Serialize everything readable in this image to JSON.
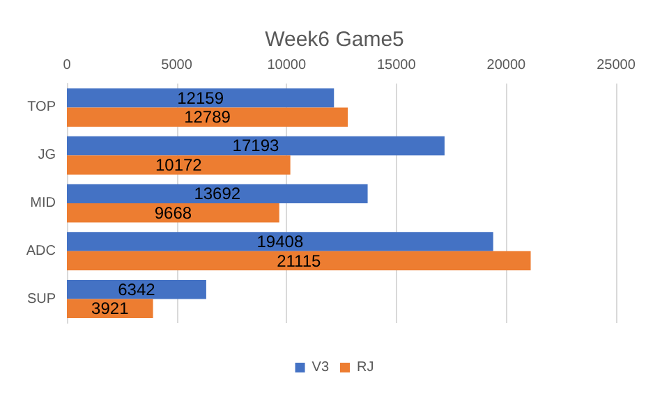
{
  "chart_data": {
    "type": "bar",
    "orientation": "horizontal",
    "title": "Week6 Game5",
    "categories": [
      "TOP",
      "JG",
      "MID",
      "ADC",
      "SUP"
    ],
    "series": [
      {
        "name": "V3",
        "color": "#4472c4",
        "values": [
          12159,
          17193,
          13692,
          19408,
          6342
        ]
      },
      {
        "name": "RJ",
        "color": "#ed7d31",
        "values": [
          12789,
          10172,
          9668,
          21115,
          3921
        ]
      }
    ],
    "xlim": [
      0,
      25000
    ],
    "xticks": [
      0,
      5000,
      10000,
      15000,
      20000,
      25000
    ],
    "grid": "x",
    "legend": "bottom",
    "data_labels": true
  }
}
